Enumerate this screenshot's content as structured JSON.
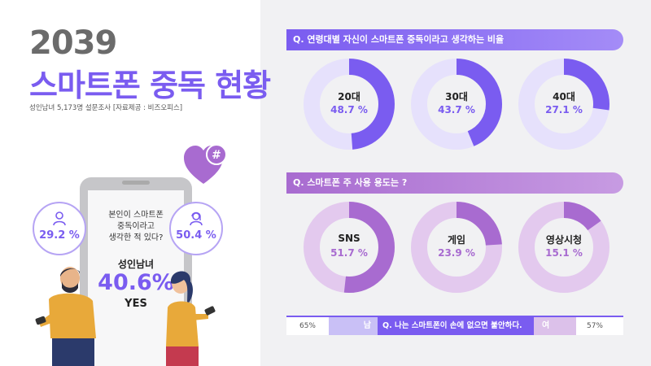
{
  "header": {
    "year": "2039",
    "title": "스마트폰 중독 현황",
    "subtitle": "성인남녀 5,173명 설문조사 [자료제공 : 비즈오피스]"
  },
  "colors": {
    "purple": "#7a5cf0",
    "purple_light": "#e6e1fc",
    "violet": "#a86bd0",
    "violet_light": "#e3c9ee",
    "gray_panel": "#f1f1f3"
  },
  "phone": {
    "question_line1": "본인이 스마트폰",
    "question_line2": "중독이라고",
    "question_line3": "생각한 적 있다?",
    "group": "성인남녀",
    "percent": "40.6%",
    "answer": "YES",
    "male_pct": "29.2 %",
    "female_pct": "50.4 %",
    "hashtag": "#"
  },
  "section1": {
    "question": "Q. 연령대별 자신이 스마트폰 중독이라고 생각하는 비율"
  },
  "section2": {
    "question": "Q. 스마트폰 주 사용 용도는 ?"
  },
  "bottom": {
    "male_pct": "65%",
    "male_label": "남",
    "question": "Q. 나는 스마트폰이 손에 없으면 불안하다.",
    "female_label": "여",
    "female_pct": "57%"
  },
  "chart_data": [
    {
      "type": "pie",
      "title": "Q. 연령대별 자신이 스마트폰 중독이라고 생각하는 비율",
      "categories": [
        "20대",
        "30대",
        "40대"
      ],
      "values": [
        48.7,
        43.7,
        27.1
      ],
      "labels": [
        "48.7 %",
        "43.7 %",
        "27.1 %"
      ]
    },
    {
      "type": "pie",
      "title": "Q. 스마트폰 주 사용 용도는 ?",
      "categories": [
        "SNS",
        "게임",
        "영상시청"
      ],
      "values": [
        51.7,
        23.9,
        15.1
      ],
      "labels": [
        "51.7 %",
        "23.9 %",
        "15.1 %"
      ]
    },
    {
      "type": "bar",
      "title": "Q. 나는 스마트폰이 손에 없으면 불안하다.",
      "categories": [
        "남",
        "여"
      ],
      "values": [
        65,
        57
      ],
      "labels": [
        "65%",
        "57%"
      ]
    },
    {
      "type": "bar",
      "title": "본인이 스마트폰 중독이라고 생각한 적 있다?",
      "categories": [
        "남",
        "여",
        "성인남녀"
      ],
      "values": [
        29.2,
        50.4,
        40.6
      ]
    }
  ]
}
